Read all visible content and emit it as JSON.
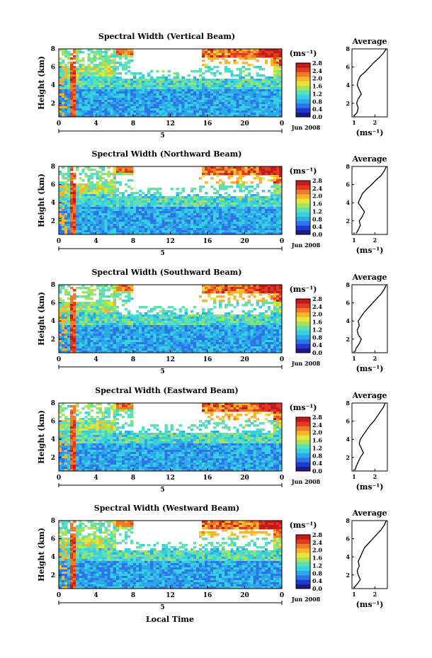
{
  "figure": {
    "xlabel": "Local Time",
    "date_label": "Jun 2008",
    "day_label": "5",
    "unit_label": "(ms⁻¹)",
    "avg_title": "Average",
    "palette": [
      "#1f1a8a",
      "#1d3bd0",
      "#2f73e8",
      "#2ba8e8",
      "#36d0e0",
      "#5ee0b4",
      "#a8e25a",
      "#e6e63a",
      "#f5b52e",
      "#f07a28",
      "#e03a22",
      "#c41a1a"
    ]
  },
  "chart_data": [
    {
      "type": "heatmap",
      "title": "Spectral Width (Vertical Beam)",
      "ylabel": "Height (km)",
      "x_ticks": [
        "0",
        "4",
        "8",
        "12",
        "16",
        "20",
        "0"
      ],
      "y_ticks": [
        "2",
        "4",
        "6",
        "8"
      ],
      "xlim": [
        0,
        24
      ],
      "ylim": [
        0.5,
        8
      ],
      "colorbar": {
        "ticks": [
          "0.0",
          "0.4",
          "0.8",
          "1.2",
          "1.6",
          "2.0",
          "2.4",
          "2.8"
        ],
        "range": [
          0,
          2.8
        ]
      },
      "profile": {
        "title": "Average",
        "xlabel": "(ms⁻¹)",
        "x_ticks": [
          "1",
          "2"
        ],
        "y_ticks": [
          "2",
          "4",
          "6",
          "8"
        ],
        "xlim": [
          0.9,
          2.6
        ],
        "ylim": [
          0.5,
          8
        ],
        "heights": [
          0.6,
          1.0,
          1.5,
          2.0,
          2.5,
          3.0,
          3.5,
          4.0,
          4.5,
          5.0,
          5.5,
          6.0,
          6.5,
          7.0,
          7.5,
          8.0
        ],
        "values": [
          1.0,
          1.15,
          1.2,
          1.12,
          1.2,
          1.35,
          1.25,
          1.15,
          1.2,
          1.3,
          1.55,
          1.75,
          1.95,
          2.2,
          2.4,
          2.55
        ]
      }
    },
    {
      "type": "heatmap",
      "title": "Spectral Width (Northward Beam)",
      "ylabel": "Height (km)",
      "x_ticks": [
        "0",
        "4",
        "8",
        "12",
        "16",
        "20",
        "0"
      ],
      "y_ticks": [
        "2",
        "4",
        "6",
        "8"
      ],
      "xlim": [
        0,
        24
      ],
      "ylim": [
        0.5,
        8
      ],
      "colorbar": {
        "ticks": [
          "0.0",
          "0.4",
          "0.8",
          "1.2",
          "1.6",
          "2.0",
          "2.4",
          "2.8"
        ],
        "range": [
          0,
          2.8
        ]
      },
      "profile": {
        "title": "Average",
        "xlabel": "(ms⁻¹)",
        "x_ticks": [
          "1",
          "2"
        ],
        "y_ticks": [
          "2",
          "4",
          "6",
          "8"
        ],
        "xlim": [
          0.9,
          2.6
        ],
        "ylim": [
          0.5,
          8
        ],
        "heights": [
          0.6,
          1.0,
          1.5,
          2.0,
          2.5,
          3.0,
          3.5,
          4.0,
          4.5,
          5.0,
          5.5,
          6.0,
          6.5,
          7.0,
          7.5,
          8.0
        ],
        "values": [
          1.1,
          1.2,
          1.3,
          1.25,
          1.4,
          1.5,
          1.35,
          1.2,
          1.3,
          1.4,
          1.6,
          1.85,
          2.05,
          2.3,
          2.45,
          2.55
        ]
      }
    },
    {
      "type": "heatmap",
      "title": "Spectral Width (Southward Beam)",
      "ylabel": "Height (km)",
      "x_ticks": [
        "0",
        "4",
        "8",
        "12",
        "16",
        "20",
        "0"
      ],
      "y_ticks": [
        "2",
        "4",
        "6",
        "8"
      ],
      "xlim": [
        0,
        24
      ],
      "ylim": [
        0.5,
        8
      ],
      "colorbar": {
        "ticks": [
          "0.0",
          "0.4",
          "0.8",
          "1.2",
          "1.6",
          "2.0",
          "2.4",
          "2.8"
        ],
        "range": [
          0,
          2.8
        ]
      },
      "profile": {
        "title": "Average",
        "xlabel": "(ms⁻¹)",
        "x_ticks": [
          "1",
          "2"
        ],
        "y_ticks": [
          "2",
          "4",
          "6",
          "8"
        ],
        "xlim": [
          0.9,
          2.6
        ],
        "ylim": [
          0.5,
          8
        ],
        "heights": [
          0.6,
          1.0,
          1.5,
          2.0,
          2.5,
          3.0,
          3.5,
          4.0,
          4.5,
          5.0,
          5.5,
          6.0,
          6.5,
          7.0,
          7.5,
          8.0
        ],
        "values": [
          1.05,
          1.1,
          1.25,
          1.35,
          1.2,
          1.15,
          1.25,
          1.2,
          1.35,
          1.5,
          1.7,
          1.9,
          2.1,
          2.3,
          2.45,
          2.55
        ]
      }
    },
    {
      "type": "heatmap",
      "title": "Spectral Width (Eastward Beam)",
      "ylabel": "Height (km)",
      "x_ticks": [
        "0",
        "4",
        "8",
        "12",
        "16",
        "20",
        "0"
      ],
      "y_ticks": [
        "2",
        "4",
        "6",
        "8"
      ],
      "xlim": [
        0,
        24
      ],
      "ylim": [
        0.5,
        8
      ],
      "colorbar": {
        "ticks": [
          "0.0",
          "0.4",
          "0.8",
          "1.2",
          "1.6",
          "2.0",
          "2.4",
          "2.8"
        ],
        "range": [
          0,
          2.8
        ]
      },
      "profile": {
        "title": "Average",
        "xlabel": "(ms⁻¹)",
        "x_ticks": [
          "1",
          "2"
        ],
        "y_ticks": [
          "2",
          "4",
          "6",
          "8"
        ],
        "xlim": [
          0.9,
          2.6
        ],
        "ylim": [
          0.5,
          8
        ],
        "heights": [
          0.6,
          1.0,
          1.5,
          2.0,
          2.5,
          3.0,
          3.5,
          4.0,
          4.5,
          5.0,
          5.5,
          6.0,
          6.5,
          7.0,
          7.5,
          8.0
        ],
        "values": [
          1.05,
          1.1,
          1.2,
          1.3,
          1.45,
          1.35,
          1.25,
          1.3,
          1.45,
          1.6,
          1.75,
          1.95,
          2.1,
          2.25,
          2.4,
          2.5
        ]
      }
    },
    {
      "type": "heatmap",
      "title": "Spectral Width (Westward Beam)",
      "ylabel": "Height (km)",
      "x_ticks": [
        "0",
        "4",
        "8",
        "12",
        "16",
        "20",
        "0"
      ],
      "y_ticks": [
        "2",
        "4",
        "6",
        "8"
      ],
      "xlim": [
        0,
        24
      ],
      "ylim": [
        0.5,
        8
      ],
      "colorbar": {
        "ticks": [
          "0.0",
          "0.4",
          "0.8",
          "1.2",
          "1.6",
          "2.0",
          "2.4",
          "2.8"
        ],
        "range": [
          0,
          2.8
        ]
      },
      "profile": {
        "title": "Average",
        "xlabel": "(ms⁻¹)",
        "x_ticks": [
          "1",
          "2"
        ],
        "y_ticks": [
          "2",
          "4",
          "6",
          "8"
        ],
        "xlim": [
          0.9,
          2.6
        ],
        "ylim": [
          0.5,
          8
        ],
        "heights": [
          0.6,
          1.0,
          1.5,
          2.0,
          2.5,
          3.0,
          3.5,
          4.0,
          4.5,
          5.0,
          5.5,
          6.0,
          6.5,
          7.0,
          7.5,
          8.0
        ],
        "values": [
          1.0,
          1.15,
          1.3,
          1.2,
          1.15,
          1.25,
          1.2,
          1.3,
          1.4,
          1.5,
          1.7,
          1.9,
          2.1,
          2.3,
          2.45,
          2.55
        ]
      }
    }
  ]
}
